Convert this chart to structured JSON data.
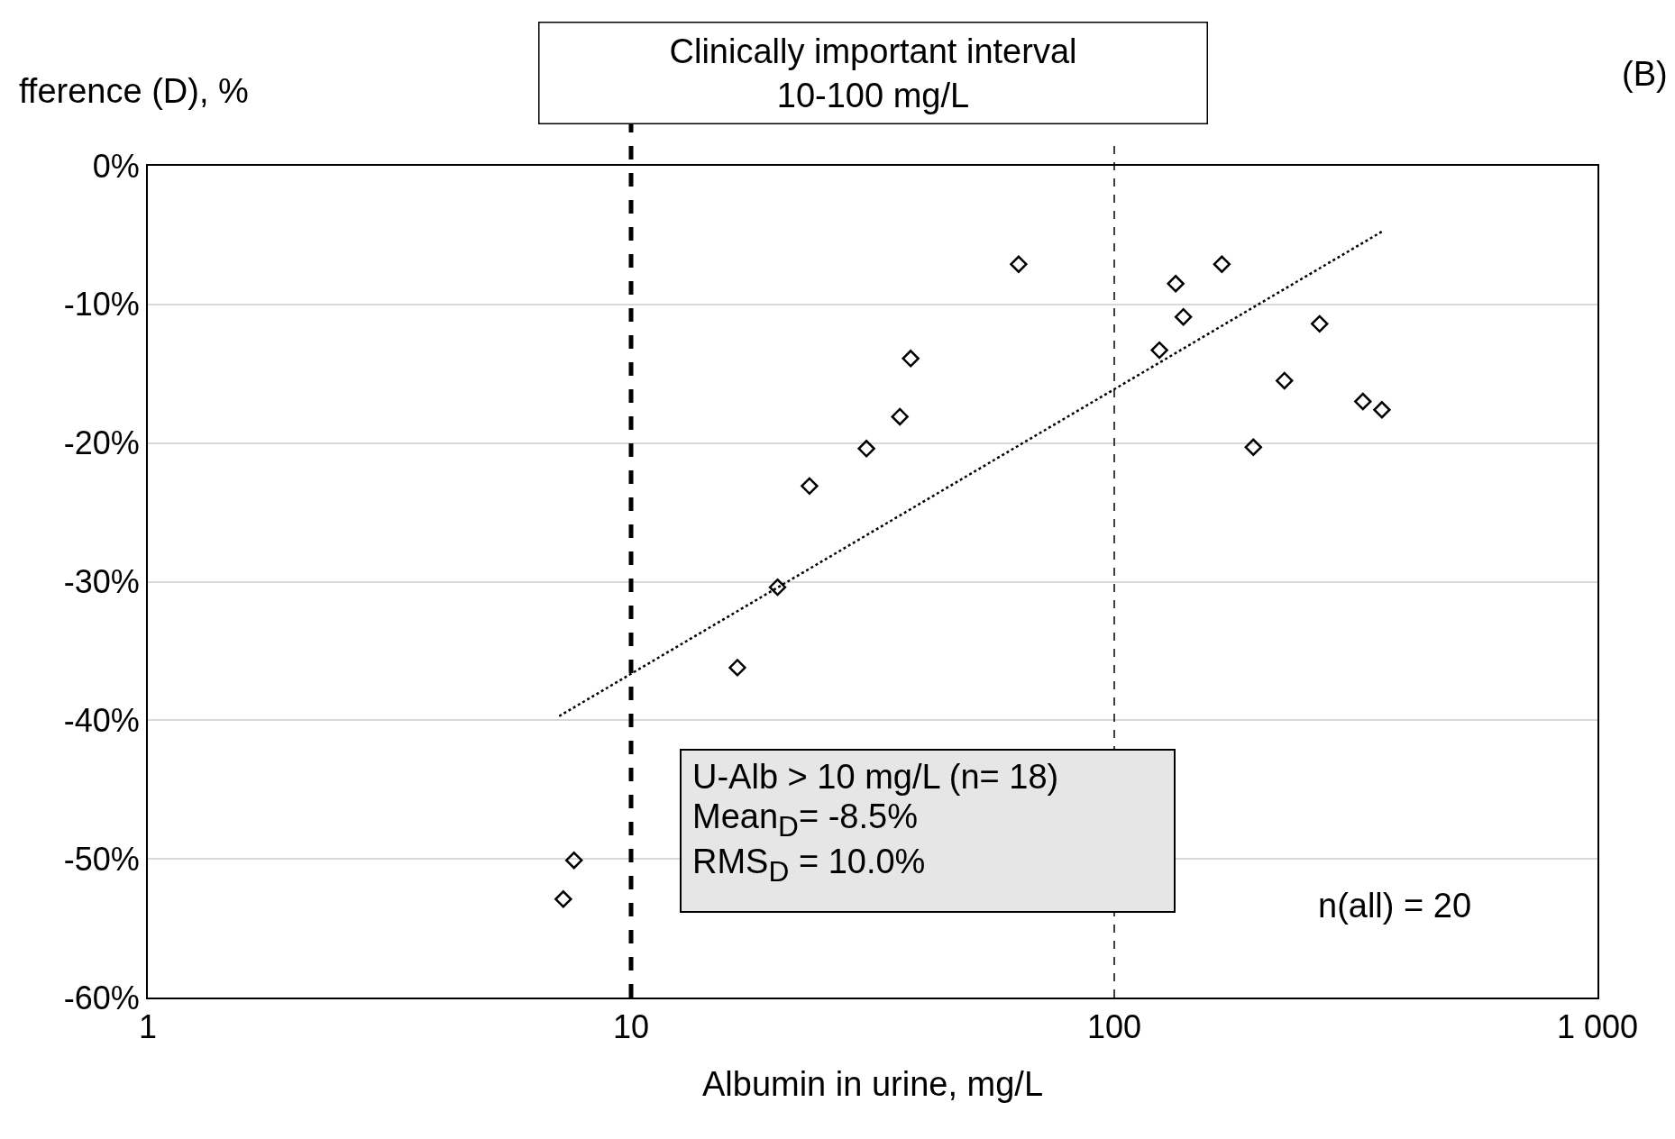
{
  "chart_data": {
    "type": "scatter",
    "ylabel": "fference (D), %",
    "xlabel": "Albumin in urine, mg/L",
    "x": [
      7.24,
      7.62,
      16.6,
      20.1,
      23.4,
      30.7,
      36.0,
      37.9,
      63.4,
      124,
      134,
      139,
      167,
      194,
      225,
      266,
      327,
      358
    ],
    "values": [
      -52.9,
      -50.1,
      -36.2,
      -30.4,
      -23.1,
      -20.4,
      -18.1,
      -13.9,
      -7.1,
      -13.3,
      -8.5,
      -10.9,
      -7.1,
      -20.3,
      -15.5,
      -11.4,
      -17.0,
      -17.6
    ],
    "color": "#000000",
    "marker": "diamond",
    "series": [
      {
        "type": "line",
        "x": [
          7.1,
          360
        ],
        "values": [
          -39.7,
          -4.7
        ],
        "color": "#000000",
        "line_style": "dotted",
        "marker": "none"
      }
    ],
    "log": "x",
    "xlim": [
      1,
      1000
    ],
    "xticks": [
      1,
      10,
      100,
      {
        "value": 1000,
        "label": "1 000"
      }
    ],
    "ylim": [
      -60,
      0
    ],
    "yticks": [
      {
        "value": 0,
        "label": "0%"
      },
      {
        "value": -10,
        "label": "-10%"
      },
      {
        "value": -20,
        "label": "-20%"
      },
      {
        "value": -30,
        "label": "-30%"
      },
      {
        "value": -40,
        "label": "-40%"
      },
      {
        "value": -50,
        "label": "-50%"
      },
      {
        "value": -60,
        "label": "-60%"
      }
    ],
    "grid": "y",
    "ref_lines": [
      {
        "axis": "x",
        "value": 10,
        "color": "#000000",
        "line_style": "dashed"
      },
      {
        "axis": "x",
        "value": 100,
        "color": "#000000",
        "line_style": "dashed"
      }
    ],
    "annotations": [
      "Clinically important interval\n10-100 mg/L",
      "U-Alb > 10 mg/L (n= 18)\nMean$_{D}$= -8.5%\nRMS$_{D}$ = 10.0%",
      "n(all) = 20",
      "(B)"
    ]
  }
}
